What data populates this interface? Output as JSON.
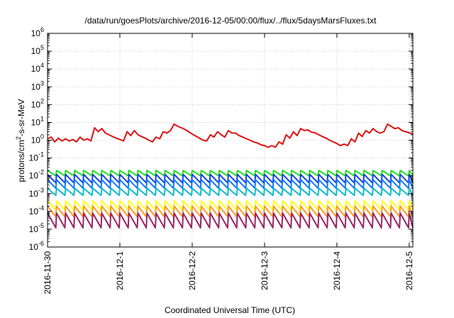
{
  "chart_data": {
    "type": "line",
    "title": "/data/run/goesPlots/archive/2016-12-05/00:00/flux/../flux/5daysMarsFluxes.txt",
    "xlabel": "Coordinated Universal Time (UTC)",
    "ylabel": {
      "base": "protons/cm",
      "sup": "2",
      "rest": "-s-sr-MeV"
    },
    "x_ticks": [
      "2016-11-30",
      "2016-12-1",
      "2016-12-2",
      "2016-12-3",
      "2016-12-4",
      "2016-12-5"
    ],
    "x_tick_days": [
      0,
      1,
      2,
      3,
      4,
      5
    ],
    "xlim_days": [
      0,
      5.05
    ],
    "y_scale": "log",
    "y_ticks": [
      {
        "base": "10",
        "exp": "-6"
      },
      {
        "base": "10",
        "exp": "-5"
      },
      {
        "base": "10",
        "exp": "-4"
      },
      {
        "base": "10",
        "exp": "-3"
      },
      {
        "base": "10",
        "exp": "-2"
      },
      {
        "base": "10",
        "exp": "-1"
      },
      {
        "base": "10",
        "exp": "0"
      },
      {
        "base": "10",
        "exp": "1"
      },
      {
        "base": "10",
        "exp": "2"
      },
      {
        "base": "10",
        "exp": "3"
      },
      {
        "base": "10",
        "exp": "4"
      },
      {
        "base": "10",
        "exp": "5"
      },
      {
        "base": "10",
        "exp": "6"
      }
    ],
    "ylim": [
      1e-06,
      1000000.0
    ],
    "grid": true,
    "legend": "none",
    "series": [
      {
        "color": "#dd1111",
        "x": [
          0.0,
          0.05,
          0.1,
          0.15,
          0.2,
          0.25,
          0.3,
          0.35,
          0.4,
          0.45,
          0.5,
          0.55,
          0.6,
          0.65,
          0.7,
          0.75,
          0.8,
          0.85,
          0.9,
          0.95,
          1.0,
          1.05,
          1.1,
          1.15,
          1.2,
          1.25,
          1.3,
          1.35,
          1.4,
          1.45,
          1.5,
          1.55,
          1.6,
          1.65,
          1.7,
          1.75,
          1.8,
          1.85,
          1.9,
          1.95,
          2.0,
          2.05,
          2.1,
          2.15,
          2.2,
          2.25,
          2.3,
          2.35,
          2.4,
          2.45,
          2.5,
          2.55,
          2.6,
          2.65,
          2.7,
          2.75,
          2.8,
          2.85,
          2.9,
          2.95,
          3.0,
          3.05,
          3.1,
          3.15,
          3.2,
          3.25,
          3.3,
          3.35,
          3.4,
          3.45,
          3.5,
          3.55,
          3.6,
          3.65,
          3.7,
          3.75,
          3.8,
          3.85,
          3.9,
          3.95,
          4.0,
          4.05,
          4.1,
          4.15,
          4.2,
          4.25,
          4.3,
          4.35,
          4.4,
          4.45,
          4.5,
          4.55,
          4.6,
          4.65,
          4.7,
          4.75,
          4.8,
          4.85,
          4.9,
          4.95,
          5.0,
          5.05
        ],
        "values": [
          1.2,
          1.5,
          0.8,
          1.3,
          0.9,
          1.2,
          0.9,
          1.1,
          0.8,
          1.5,
          1.0,
          1.2,
          0.9,
          5.0,
          3.0,
          4.5,
          2.5,
          2.0,
          1.6,
          1.3,
          1.1,
          0.9,
          3.0,
          1.8,
          3.5,
          2.0,
          1.6,
          1.3,
          1.0,
          0.8,
          1.5,
          1.2,
          3.0,
          2.5,
          3.5,
          8.0,
          6.0,
          5.0,
          4.0,
          3.0,
          2.2,
          1.7,
          1.3,
          1.0,
          0.9,
          2.0,
          1.5,
          3.0,
          2.0,
          1.5,
          3.5,
          2.5,
          2.5,
          1.8,
          1.5,
          1.2,
          1.0,
          0.8,
          0.7,
          0.55,
          0.5,
          0.4,
          0.5,
          0.4,
          0.8,
          0.6,
          2.0,
          1.3,
          3.0,
          1.8,
          4.5,
          3.5,
          3.8,
          2.8,
          2.6,
          2.0,
          1.6,
          1.3,
          1.0,
          0.8,
          0.65,
          0.5,
          0.6,
          0.5,
          1.2,
          0.8,
          2.5,
          1.6,
          3.5,
          2.5,
          4.5,
          3.0,
          2.5,
          3.0,
          8.0,
          6.0,
          4.5,
          5.0,
          3.5,
          3.0,
          2.6,
          2.2
        ]
      },
      {
        "color": "#22dd22",
        "high": 0.02,
        "low": 0.01
      },
      {
        "color": "#1144dd",
        "high": 0.012,
        "low": 0.004
      },
      {
        "color": "#1177ff",
        "high": 0.006,
        "low": 0.002
      },
      {
        "color": "#11bbcc",
        "high": 0.002,
        "low": 0.0008
      },
      {
        "color": "#ffff22",
        "high": 0.0004,
        "low": 0.00012
      },
      {
        "color": "#ff9922",
        "high": 0.0002,
        "low": 5e-05
      },
      {
        "color": "#992266",
        "high": 8e-05,
        "low": 1.2e-05
      }
    ],
    "periodic_series_period_days": 0.125
  }
}
